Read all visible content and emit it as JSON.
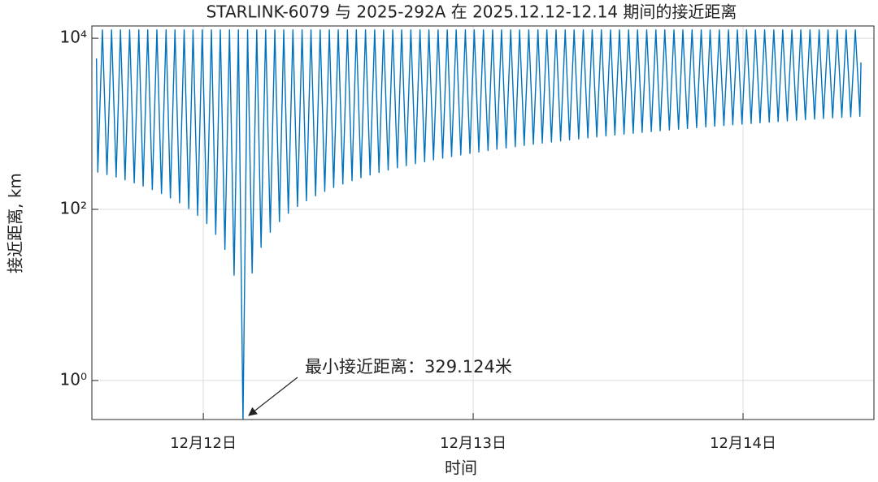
{
  "chart_data": {
    "type": "line",
    "title": "STARLINK-6079 与 2025-292A 在 2025.12.12-12.14 期间的接近距离",
    "x_label": "时间",
    "y_label": "接近距离, km",
    "annotation": "最小接近距离：329.124米",
    "color": "#0072BD",
    "y_log": true,
    "grid": true,
    "xlim": [
      11.587,
      14.485
    ],
    "ylim": [
      0.35,
      13900
    ],
    "xticks": [
      {
        "value": 12,
        "label": "12月12日"
      },
      {
        "value": 13,
        "label": "12月13日"
      },
      {
        "value": 14,
        "label": "12月14日"
      }
    ],
    "yticks": [
      {
        "value": 1,
        "label": "10⁰"
      },
      {
        "value": 100,
        "label": "10²"
      },
      {
        "value": 10000,
        "label": "10⁴"
      }
    ],
    "x": [
      11.604,
      11.609,
      11.626,
      11.643,
      11.66,
      11.677,
      11.693,
      11.71,
      11.727,
      11.744,
      11.761,
      11.777,
      11.794,
      11.811,
      11.828,
      11.845,
      11.862,
      11.878,
      11.895,
      11.912,
      11.929,
      11.946,
      11.962,
      11.979,
      11.996,
      12.013,
      12.03,
      12.046,
      12.063,
      12.08,
      12.097,
      12.114,
      12.13,
      12.147,
      12.164,
      12.181,
      12.198,
      12.214,
      12.231,
      12.248,
      12.265,
      12.282,
      12.298,
      12.315,
      12.332,
      12.349,
      12.366,
      12.382,
      12.399,
      12.416,
      12.433,
      12.45,
      12.467,
      12.483,
      12.5,
      12.517,
      12.534,
      12.551,
      12.567,
      12.584,
      12.601,
      12.618,
      12.635,
      12.651,
      12.668,
      12.685,
      12.702,
      12.719,
      12.735,
      12.752,
      12.769,
      12.786,
      12.803,
      12.82,
      12.836,
      12.853,
      12.87,
      12.887,
      12.904,
      12.92,
      12.937,
      12.954,
      12.971,
      12.988,
      13.004,
      13.021,
      13.038,
      13.055,
      13.072,
      13.088,
      13.105,
      13.122,
      13.139,
      13.156,
      13.172,
      13.189,
      13.206,
      13.223,
      13.24,
      13.256,
      13.273,
      13.29,
      13.307,
      13.324,
      13.341,
      13.357,
      13.374,
      13.391,
      13.408,
      13.425,
      13.441,
      13.458,
      13.475,
      13.492,
      13.509,
      13.525,
      13.542,
      13.559,
      13.576,
      13.593,
      13.609,
      13.626,
      13.643,
      13.66,
      13.677,
      13.693,
      13.71,
      13.727,
      13.744,
      13.761,
      13.777,
      13.794,
      13.811,
      13.828,
      13.845,
      13.862,
      13.878,
      13.895,
      13.912,
      13.929,
      13.946,
      13.962,
      13.979,
      13.996,
      14.013,
      14.03,
      14.046,
      14.063,
      14.08,
      14.097,
      14.114,
      14.13,
      14.147,
      14.164,
      14.181,
      14.198,
      14.214,
      14.231,
      14.248,
      14.265,
      14.282,
      14.298,
      14.315,
      14.332,
      14.349,
      14.366,
      14.382,
      14.399,
      14.416,
      14.433,
      14.437
    ],
    "values": [
      5800,
      272,
      12500,
      255,
      12500,
      238,
      12500,
      221,
      12500,
      204,
      12500,
      187,
      12500,
      170,
      12500,
      153,
      12500,
      136,
      12500,
      119,
      12500,
      102,
      12500,
      85,
      12500,
      68,
      12500,
      51,
      12500,
      34,
      12500,
      17,
      12500,
      0.329124,
      12500,
      18,
      12500,
      36,
      12500,
      54,
      12500,
      72,
      12500,
      90,
      12500,
      108,
      12500,
      126,
      12500,
      144,
      12500,
      162,
      12500,
      180,
      12500,
      198,
      12500,
      216,
      12500,
      234,
      12500,
      252,
      12500,
      270,
      12500,
      288,
      12500,
      306,
      12500,
      324,
      12500,
      342,
      12500,
      360,
      12500,
      378,
      12500,
      396,
      12500,
      414,
      12500,
      432,
      12500,
      450,
      12500,
      468,
      12500,
      486,
      12500,
      504,
      12500,
      522,
      12500,
      540,
      12500,
      558,
      12500,
      576,
      12500,
      594,
      12500,
      612,
      12500,
      630,
      12500,
      648,
      12500,
      666,
      12500,
      684,
      12500,
      702,
      12500,
      720,
      12500,
      738,
      12500,
      756,
      12500,
      774,
      12500,
      792,
      12500,
      810,
      12500,
      828,
      12500,
      846,
      12500,
      864,
      12500,
      882,
      12500,
      900,
      12500,
      918,
      12500,
      936,
      12500,
      954,
      12500,
      972,
      12500,
      990,
      12500,
      1008,
      12500,
      1026,
      12500,
      1044,
      12500,
      1062,
      12500,
      1080,
      12500,
      1098,
      12500,
      1116,
      12500,
      1134,
      12500,
      1152,
      12500,
      1170,
      12500,
      1188,
      12500,
      1206,
      12500,
      1224,
      5200
    ]
  }
}
